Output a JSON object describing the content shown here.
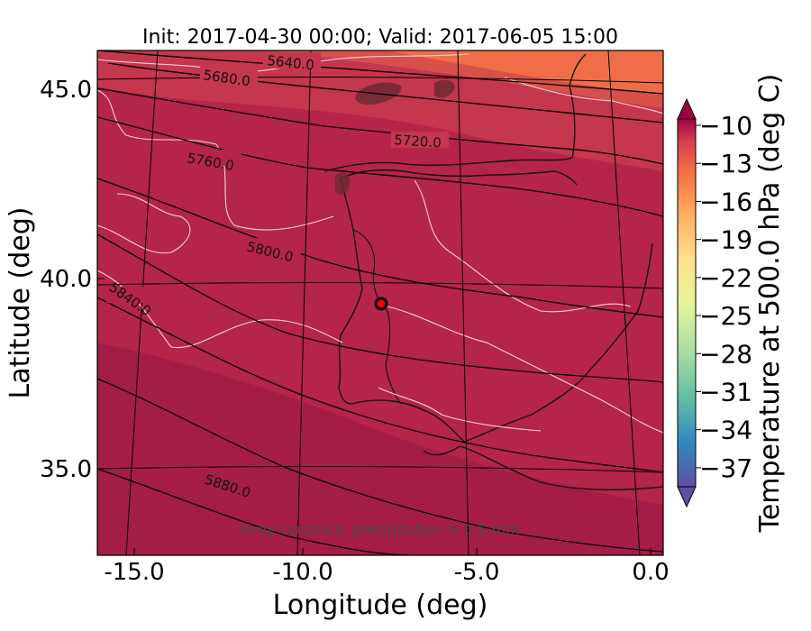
{
  "map": {
    "title": "Init: 2017-04-30 00:00; Valid: 2017-06-05 15:00",
    "xlabel": "Longitude (deg)",
    "ylabel": "Latitude (deg)",
    "x_ticks": [
      "-15.0",
      "-10.0",
      "-5.0",
      "0.0"
    ],
    "y_ticks": [
      "45.0",
      "40.0",
      "35.0"
    ],
    "x_range_deg": [
      -15.9,
      0.3
    ],
    "y_range_deg": [
      32.8,
      46.1
    ],
    "height_contour_labels": [
      "5640.0",
      "5680.0",
      "5720.0",
      "5760.0",
      "5800.0",
      "5840.0",
      "5880.0"
    ],
    "note": "Grey contours: precipitation > 0.5 mm",
    "marker": {
      "label": "station",
      "lon": -7.6,
      "lat": 39.3,
      "color": "#ff0000"
    }
  },
  "colorbar": {
    "label": "Temperature at 500.0 hPa (deg C)",
    "ticks": [
      "−10",
      "−13",
      "−16",
      "−19",
      "−22",
      "−25",
      "−28",
      "−31",
      "−34",
      "−37"
    ],
    "range": [
      -38.5,
      -9.5
    ],
    "colormap": "Spectral_r",
    "extend": "both"
  },
  "colors": {
    "field_dominant": "#b5244a",
    "field_warm": "#ef6e48",
    "height_contours": "#000000",
    "temperature_contours": "#f3d4db",
    "precipitation_contours": "#6b2a32"
  }
}
